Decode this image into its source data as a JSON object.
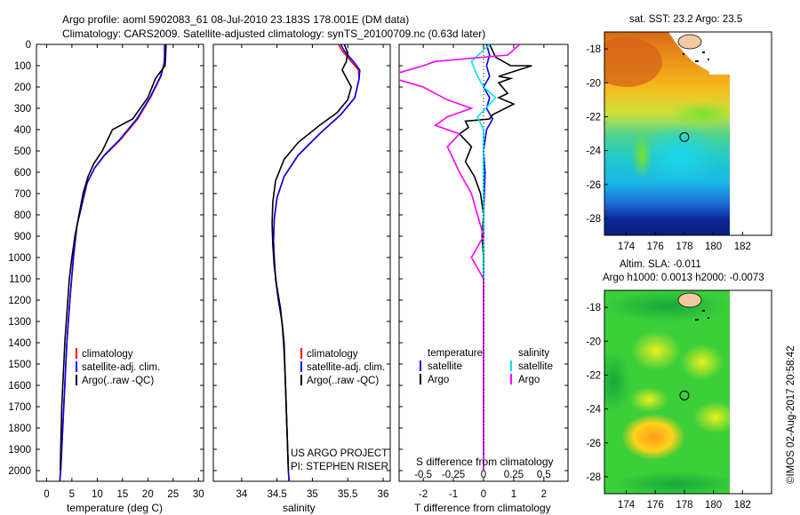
{
  "header": {
    "line1": "Argo profile: aoml 5902083_61 08-Jul-2010 23.183S 178.001E (DM data)",
    "line2": "Climatology: CARS2009. Satellite-adjusted climatology: synTS_20100709.nc (0.63d later)"
  },
  "side_stamp": "©IMOS 02-Aug-2017 20:58:42",
  "colors": {
    "climatology": "#ff0000",
    "satellite": "#0000ff",
    "argo": "#000000",
    "sat_diff_s": "#00e5ee",
    "argo_diff_s": "#ff00ff"
  },
  "chart_data": [
    {
      "id": "temperature",
      "type": "line",
      "xlabel": "temperature (deg C)",
      "ylabel": "",
      "xlim": [
        -2,
        31
      ],
      "ylim": [
        2050,
        0
      ],
      "xticks": [
        0,
        5,
        10,
        15,
        20,
        25,
        30
      ],
      "yticks": [
        0,
        100,
        200,
        300,
        400,
        500,
        600,
        700,
        800,
        900,
        1000,
        1100,
        1200,
        1300,
        1400,
        1500,
        1600,
        1700,
        1800,
        1900,
        2000
      ],
      "legend": [
        "climatology",
        "satellite-adj. clim.",
        "Argo(..raw -QC)"
      ],
      "series": [
        {
          "name": "climatology",
          "color": "#ff0000",
          "points": [
            [
              23.4,
              0
            ],
            [
              23.4,
              50
            ],
            [
              23.3,
              80
            ],
            [
              22.6,
              150
            ],
            [
              20.5,
              250
            ],
            [
              18,
              350
            ],
            [
              14.5,
              450
            ],
            [
              11.5,
              520
            ],
            [
              9.5,
              580
            ],
            [
              8,
              650
            ],
            [
              7,
              750
            ],
            [
              6,
              850
            ],
            [
              5.3,
              1000
            ],
            [
              4.6,
              1200
            ],
            [
              4.0,
              1400
            ],
            [
              3.6,
              1600
            ],
            [
              3.2,
              1800
            ],
            [
              2.8,
              2000
            ],
            [
              2.6,
              2050
            ]
          ]
        },
        {
          "name": "satellite-adj. clim.",
          "color": "#0000ff",
          "points": [
            [
              23.3,
              0
            ],
            [
              23.3,
              60
            ],
            [
              23.2,
              90
            ],
            [
              22.5,
              150
            ],
            [
              20.4,
              250
            ],
            [
              17.8,
              350
            ],
            [
              14.3,
              450
            ],
            [
              11.4,
              520
            ],
            [
              9.5,
              580
            ],
            [
              8,
              650
            ],
            [
              7,
              750
            ],
            [
              6,
              850
            ],
            [
              5.3,
              1000
            ],
            [
              4.6,
              1200
            ],
            [
              4.0,
              1400
            ],
            [
              3.6,
              1600
            ],
            [
              3.2,
              1800
            ],
            [
              2.8,
              2000
            ],
            [
              2.6,
              2050
            ]
          ]
        },
        {
          "name": "Argo(..raw -QC)",
          "color": "#000000",
          "points": [
            [
              23.6,
              0
            ],
            [
              23.5,
              60
            ],
            [
              23.4,
              100
            ],
            [
              21.5,
              160
            ],
            [
              20,
              250
            ],
            [
              17,
              350
            ],
            [
              13,
              400
            ],
            [
              11,
              500
            ],
            [
              9.3,
              560
            ],
            [
              8.2,
              620
            ],
            [
              7.2,
              700
            ],
            [
              6.4,
              800
            ],
            [
              5.6,
              900
            ],
            [
              5.0,
              1000
            ],
            [
              4.5,
              1100
            ],
            [
              4.2,
              1200
            ],
            [
              3.9,
              1300
            ],
            [
              3.6,
              1400
            ],
            [
              3.4,
              1500
            ],
            [
              3.2,
              1600
            ],
            [
              3.0,
              1700
            ],
            [
              2.9,
              1800
            ],
            [
              2.8,
              1900
            ],
            [
              2.7,
              2000
            ]
          ]
        }
      ]
    },
    {
      "id": "salinity",
      "type": "line",
      "xlabel": "salinity",
      "ylabel": "",
      "xlim": [
        33.6,
        36.1
      ],
      "ylim": [
        2050,
        0
      ],
      "xticks": [
        34,
        34.5,
        35,
        35.5,
        36
      ],
      "xticklabels": [
        "34",
        "34.5",
        "35",
        "35.5",
        "36"
      ],
      "legend": [
        "climatology",
        "satellite-adj. clim.",
        "Argo(..raw -QC)"
      ],
      "annotation": [
        "US ARGO PROJECT",
        "PI: STEPHEN RISER"
      ],
      "series": [
        {
          "name": "climatology",
          "color": "#ff0000",
          "points": [
            [
              35.37,
              0
            ],
            [
              35.42,
              30
            ],
            [
              35.55,
              80
            ],
            [
              35.65,
              120
            ],
            [
              35.66,
              160
            ],
            [
              35.6,
              250
            ],
            [
              35.4,
              330
            ],
            [
              35.1,
              420
            ],
            [
              34.8,
              520
            ],
            [
              34.6,
              620
            ],
            [
              34.5,
              720
            ],
            [
              34.46,
              820
            ],
            [
              34.45,
              920
            ],
            [
              34.46,
              1000
            ],
            [
              34.48,
              1100
            ],
            [
              34.52,
              1200
            ],
            [
              34.57,
              1300
            ],
            [
              34.6,
              1400
            ],
            [
              34.62,
              1600
            ],
            [
              34.64,
              1800
            ],
            [
              34.66,
              2000
            ],
            [
              34.67,
              2050
            ]
          ]
        },
        {
          "name": "satellite-adj. clim.",
          "color": "#0000ff",
          "points": [
            [
              35.4,
              0
            ],
            [
              35.45,
              30
            ],
            [
              35.58,
              80
            ],
            [
              35.67,
              120
            ],
            [
              35.66,
              160
            ],
            [
              35.6,
              250
            ],
            [
              35.4,
              330
            ],
            [
              35.1,
              420
            ],
            [
              34.8,
              520
            ],
            [
              34.6,
              620
            ],
            [
              34.5,
              720
            ],
            [
              34.46,
              820
            ],
            [
              34.45,
              920
            ],
            [
              34.46,
              1000
            ],
            [
              34.48,
              1100
            ],
            [
              34.52,
              1200
            ],
            [
              34.57,
              1300
            ],
            [
              34.6,
              1400
            ],
            [
              34.62,
              1600
            ],
            [
              34.64,
              1800
            ],
            [
              34.66,
              2000
            ],
            [
              34.67,
              2050
            ]
          ]
        },
        {
          "name": "Argo(..raw -QC)",
          "color": "#000000",
          "points": [
            [
              35.45,
              0
            ],
            [
              35.5,
              40
            ],
            [
              35.48,
              80
            ],
            [
              35.42,
              120
            ],
            [
              35.55,
              200
            ],
            [
              35.5,
              260
            ],
            [
              35.35,
              320
            ],
            [
              35.1,
              380
            ],
            [
              34.8,
              460
            ],
            [
              34.6,
              540
            ],
            [
              34.48,
              640
            ],
            [
              34.44,
              740
            ],
            [
              34.43,
              840
            ],
            [
              34.44,
              940
            ],
            [
              34.46,
              1040
            ],
            [
              34.5,
              1140
            ],
            [
              34.55,
              1240
            ],
            [
              34.58,
              1340
            ],
            [
              34.6,
              1440
            ],
            [
              34.62,
              1600
            ],
            [
              34.64,
              1800
            ],
            [
              34.66,
              2000
            ]
          ]
        }
      ]
    },
    {
      "id": "differences",
      "type": "line",
      "xlabel": "T difference from climatology",
      "xlabel_top": "S difference from climatology",
      "xlim": [
        -2.8,
        2.8
      ],
      "ylim": [
        2050,
        0
      ],
      "xticks": [
        -2,
        -1,
        0,
        1,
        2
      ],
      "xticklabels_t": [
        "-2",
        "-1",
        "0",
        "1",
        "2"
      ],
      "xticks_s": [
        -0.5,
        -0.25,
        0,
        0.25,
        0.5
      ],
      "xticklabels_s": [
        "-0.5",
        "-0.25",
        "0",
        "0.25",
        "0.5"
      ],
      "legend_headers": [
        "temperature",
        "salinity"
      ],
      "legend": [
        "satellite",
        "Argo",
        "satellite",
        "Argo"
      ],
      "series": [
        {
          "name": "satellite",
          "quantity": "temperature",
          "color": "#0000ff",
          "points": [
            [
              0.1,
              0
            ],
            [
              0.2,
              50
            ],
            [
              0.1,
              100
            ],
            [
              0.2,
              150
            ],
            [
              0.0,
              200
            ],
            [
              0.2,
              250
            ],
            [
              0.1,
              300
            ],
            [
              0.3,
              350
            ],
            [
              0.1,
              400
            ],
            [
              0.0,
              500
            ],
            [
              0.05,
              600
            ],
            [
              0.0,
              800
            ],
            [
              0.0,
              1000
            ],
            [
              0.0,
              1500
            ],
            [
              0.0,
              2000
            ]
          ]
        },
        {
          "name": "Argo",
          "quantity": "temperature",
          "color": "#000000",
          "points": [
            [
              0.2,
              0
            ],
            [
              0.4,
              60
            ],
            [
              0.9,
              100
            ],
            [
              1.6,
              100
            ],
            [
              0.5,
              150
            ],
            [
              0.9,
              160
            ],
            [
              0.5,
              180
            ],
            [
              0.8,
              230
            ],
            [
              0.5,
              250
            ],
            [
              1.0,
              280
            ],
            [
              0.3,
              330
            ],
            [
              0.2,
              350
            ],
            [
              -0.6,
              360
            ],
            [
              -0.5,
              390
            ],
            [
              -0.8,
              420
            ],
            [
              -0.4,
              480
            ],
            [
              -0.6,
              550
            ],
            [
              -0.3,
              620
            ],
            [
              -0.1,
              700
            ],
            [
              0.0,
              800
            ],
            [
              -0.05,
              900
            ],
            [
              0.0,
              1000
            ],
            [
              0.0,
              1500
            ],
            [
              0.0,
              2000
            ]
          ]
        },
        {
          "name": "satellite",
          "quantity": "salinity",
          "color": "#00e5ee",
          "points": [
            [
              0.05,
              0
            ],
            [
              -0.1,
              80
            ],
            [
              -0.05,
              150
            ],
            [
              0.0,
              200
            ],
            [
              0.1,
              250
            ],
            [
              -0.05,
              340
            ],
            [
              0.0,
              400
            ],
            [
              0.0,
              500
            ],
            [
              0.0,
              800
            ],
            [
              0.0,
              1000
            ],
            [
              0.0,
              2000
            ]
          ]
        },
        {
          "name": "Argo",
          "quantity": "salinity",
          "color": "#ff00ff",
          "points": [
            [
              0.3,
              0
            ],
            [
              0.2,
              50
            ],
            [
              -0.4,
              80
            ],
            [
              -0.5,
              100
            ],
            [
              -0.8,
              150
            ],
            [
              -0.5,
              200
            ],
            [
              -0.3,
              260
            ],
            [
              -0.1,
              300
            ],
            [
              -0.3,
              340
            ],
            [
              -0.4,
              380
            ],
            [
              -0.2,
              420
            ],
            [
              -0.3,
              480
            ],
            [
              -0.2,
              600
            ],
            [
              -0.1,
              700
            ],
            [
              -0.05,
              800
            ],
            [
              0.0,
              900
            ],
            [
              -0.1,
              1000
            ],
            [
              0.0,
              1100
            ],
            [
              0.0,
              1500
            ],
            [
              0.0,
              2000
            ]
          ]
        }
      ]
    },
    {
      "id": "sst_map",
      "type": "heatmap",
      "title": "sat. SST: 23.2  Argo: 23.5",
      "xlim": [
        172.5,
        184
      ],
      "ylim": [
        -29,
        -17
      ],
      "xticks": [
        174,
        176,
        178,
        180,
        182
      ],
      "yticks": [
        -18,
        -20,
        -22,
        -24,
        -26,
        -28
      ],
      "marker": [
        178.0,
        -23.2
      ]
    },
    {
      "id": "sla_map",
      "type": "heatmap",
      "title": "Altim. SLA: -0.011",
      "subtitle": "Argo h1000: 0.0013 h2000: -0.0073",
      "xlim": [
        172.5,
        184
      ],
      "ylim": [
        -29,
        -17
      ],
      "xticks": [
        174,
        176,
        178,
        180,
        182
      ],
      "yticks": [
        -18,
        -20,
        -22,
        -24,
        -26,
        -28
      ],
      "marker": [
        178.0,
        -23.2
      ]
    }
  ]
}
